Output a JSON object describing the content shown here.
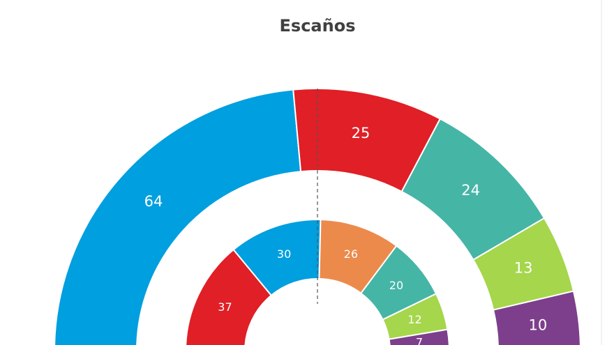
{
  "chart_data": {
    "type": "semicircle-donut",
    "title": "Escaños",
    "series": [
      {
        "values": [
          64,
          25,
          24,
          13,
          10
        ],
        "colors": [
          "#009fdf",
          "#e01f26",
          "#45b5a6",
          "#a5d64c",
          "#7d3f8c"
        ]
      },
      {
        "values": [
          37,
          30,
          26,
          20,
          12,
          7
        ],
        "colors": [
          "#e01f26",
          "#009fdf",
          "#ec8a4c",
          "#45b5a6",
          "#a5d64c",
          "#7d3f8c"
        ]
      }
    ]
  }
}
